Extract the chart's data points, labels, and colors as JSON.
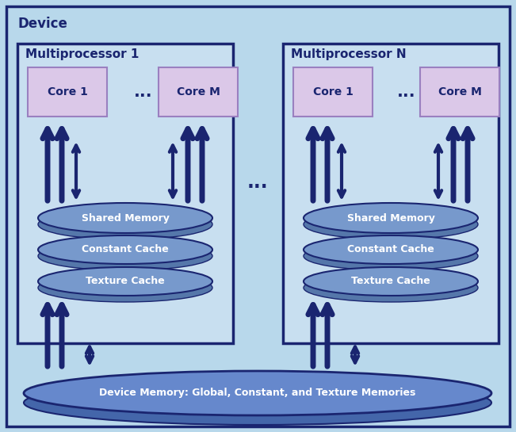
{
  "bg_color": "#b8d8eb",
  "mp_box_fill": "#c8dff0",
  "mp_border": "#1a2570",
  "core_bg": "#dbc8e8",
  "core_border": "#9a80c0",
  "ellipse_top_color": "#7799cc",
  "ellipse_shadow_color": "#5577aa",
  "ellipse_edge": "#1a2570",
  "device_mem_color": "#6688cc",
  "device_mem_shadow": "#4466aa",
  "arrow_color": "#1a2570",
  "text_white": "#ffffff",
  "text_dark": "#1a2570",
  "device_label": "Device",
  "mp1_label": "Multiprocessor 1",
  "mpn_label": "Multiprocessor N",
  "core1_label": "Core 1",
  "corem_label": "Core M",
  "shared_mem_label": "Shared Memory",
  "constant_cache_label": "Constant Cache",
  "texture_cache_label": "Texture Cache",
  "device_mem_label": "Device Memory: Global, Constant, and Texture Memories",
  "dots": "..."
}
